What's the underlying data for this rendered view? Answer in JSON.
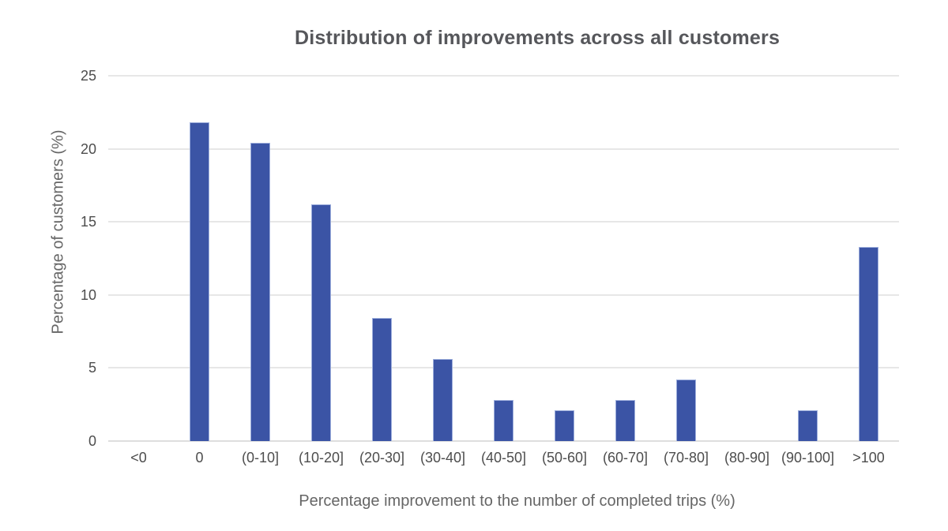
{
  "chart_data": {
    "type": "bar",
    "title": "Distribution of improvements across all customers",
    "xlabel": "Percentage improvement to the number of completed trips (%)",
    "ylabel": "Percentage of customers (%)",
    "categories": [
      "<0",
      "0",
      "(0-10]",
      "(10-20]",
      "(20-30]",
      "(30-40]",
      "(40-50]",
      "(50-60]",
      "(60-70]",
      "(70-80]",
      "(80-90]",
      "(90-100]",
      ">100"
    ],
    "values": [
      0,
      21.8,
      20.4,
      16.2,
      8.4,
      5.6,
      2.8,
      2.1,
      2.8,
      4.2,
      0,
      2.1,
      13.3
    ],
    "ylim": [
      0,
      25
    ],
    "yticks": [
      0,
      5,
      10,
      15,
      20,
      25
    ],
    "grid": "horizontal",
    "legend_position": "none",
    "colors": {
      "bar_fill": "#3B54A5",
      "bar_border": "#9DAEDC",
      "gridline": "#E7E7E7",
      "zero_line": "#DEDEDE",
      "title_text": "#56575B",
      "tick_text": "#4D4D4D",
      "axis_label_text": "#666666",
      "background": "#FFFFFF"
    }
  }
}
